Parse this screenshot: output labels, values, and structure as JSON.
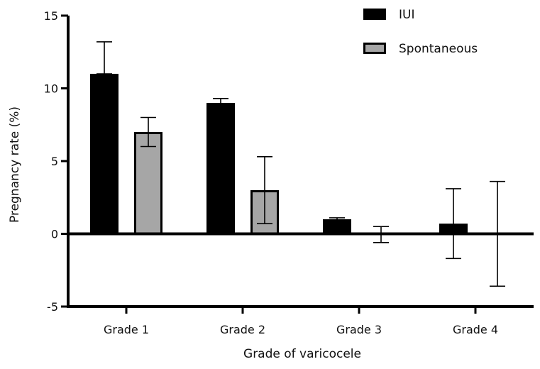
{
  "chart_data": {
    "type": "bar",
    "title": "",
    "xlabel": "Grade of varicocele",
    "ylabel": "Pregnancy rate (%)",
    "ylim": [
      -5,
      15
    ],
    "yticks": [
      "15",
      "10",
      "5",
      "0",
      "-5"
    ],
    "categories": [
      "Grade 1",
      "Grade 2",
      "Grade 3",
      "Grade 4"
    ],
    "series": [
      {
        "name": "IUI",
        "color": "#000000",
        "values": [
          11,
          9,
          1,
          0.7
        ],
        "error_low": [
          11,
          8.8,
          0.9,
          -1.7
        ],
        "error_high": [
          13.2,
          9.3,
          1.1,
          3.1
        ]
      },
      {
        "name": "Spontaneous",
        "color": "#a6a6a6",
        "values": [
          7,
          3,
          0,
          0
        ],
        "error_low": [
          6,
          0.7,
          -0.6,
          -3.6
        ],
        "error_high": [
          8,
          5.3,
          0.5,
          3.6
        ]
      }
    ],
    "legend_position": "top-right",
    "grid": false
  }
}
